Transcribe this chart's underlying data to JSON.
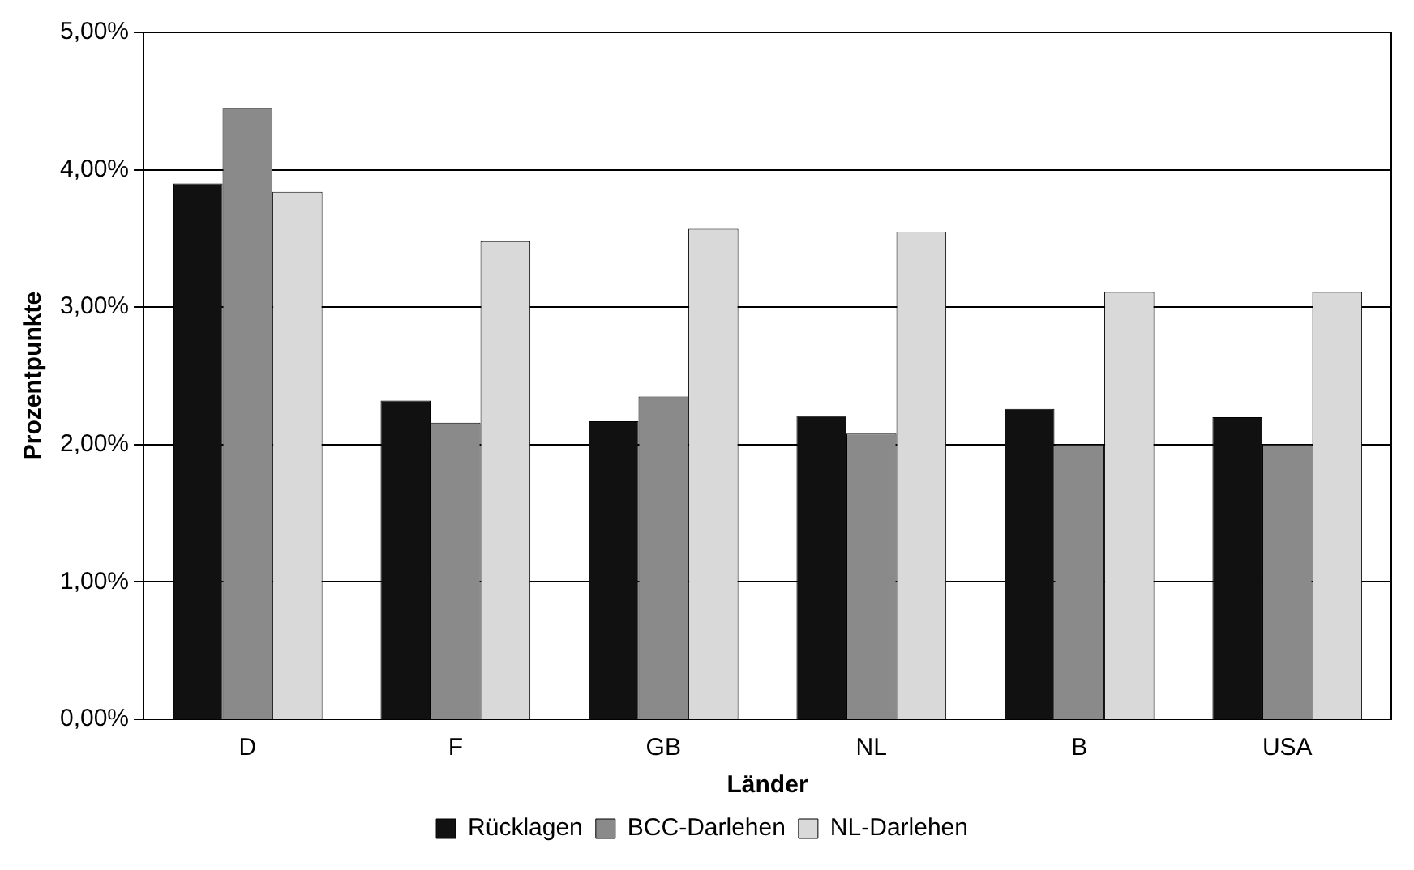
{
  "chart_data": {
    "type": "bar",
    "xlabel": "Länder",
    "ylabel": "Prozentpunkte",
    "categories": [
      "D",
      "F",
      "GB",
      "NL",
      "B",
      "USA"
    ],
    "series": [
      {
        "name": "Rücklagen",
        "color": "#111111",
        "values": [
          3.9,
          2.32,
          2.17,
          2.21,
          2.26,
          2.2
        ]
      },
      {
        "name": "BCC-Darlehen",
        "color": "#8a8a8a",
        "values": [
          4.45,
          2.16,
          2.35,
          2.08,
          2.0,
          2.0
        ]
      },
      {
        "name": "NL-Darlehen",
        "color": "#d9d9d9",
        "values": [
          3.84,
          3.48,
          3.57,
          3.55,
          3.11,
          3.11
        ]
      }
    ],
    "ylim": [
      0,
      5
    ],
    "yticks": [
      {
        "value": 0,
        "label": "0,00%"
      },
      {
        "value": 1,
        "label": "1,00%"
      },
      {
        "value": 2,
        "label": "2,00%"
      },
      {
        "value": 3,
        "label": "3,00%"
      },
      {
        "value": 4,
        "label": "4,00%"
      },
      {
        "value": 5,
        "label": "5,00%"
      }
    ],
    "grid": "y",
    "legend": "bottom"
  }
}
